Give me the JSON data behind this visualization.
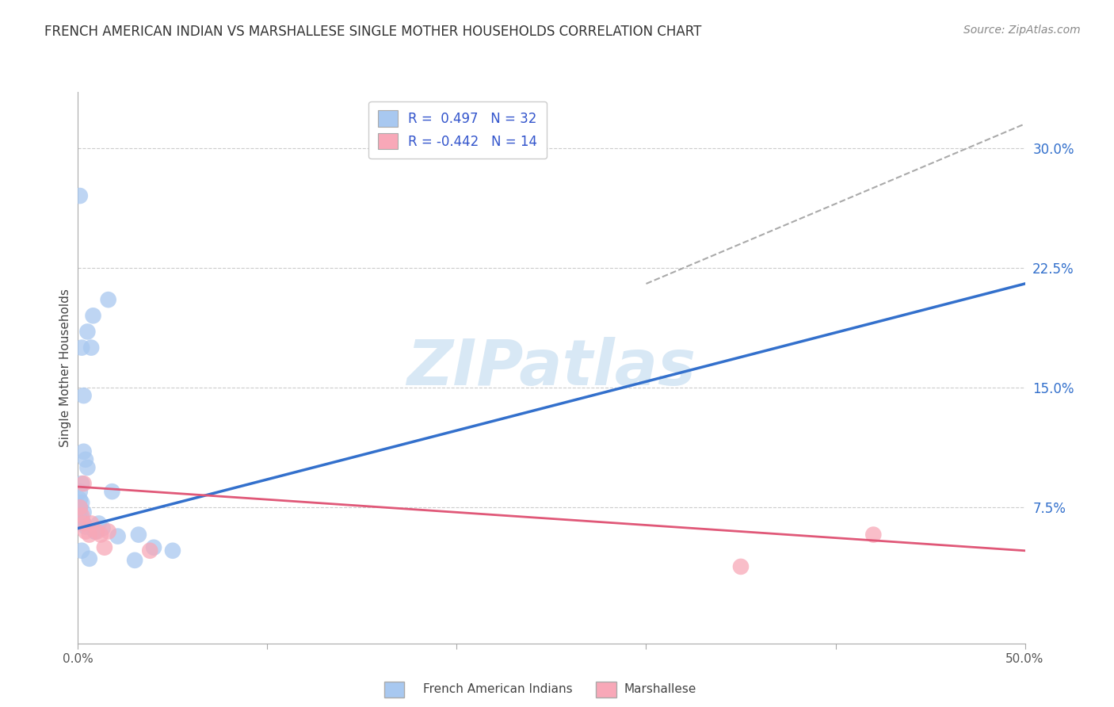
{
  "title": "FRENCH AMERICAN INDIAN VS MARSHALLESE SINGLE MOTHER HOUSEHOLDS CORRELATION CHART",
  "source": "Source: ZipAtlas.com",
  "ylabel": "Single Mother Households",
  "right_yticks": [
    "30.0%",
    "22.5%",
    "15.0%",
    "7.5%"
  ],
  "right_ytick_vals": [
    0.3,
    0.225,
    0.15,
    0.075
  ],
  "watermark": "ZIPatlas",
  "legend_blue_r": "R =  0.497",
  "legend_blue_n": "N = 32",
  "legend_pink_r": "R = -0.442",
  "legend_pink_n": "N = 14",
  "blue_scatter_x": [
    0.001,
    0.008,
    0.005,
    0.007,
    0.002,
    0.003,
    0.003,
    0.004,
    0.005,
    0.002,
    0.001,
    0.001,
    0.002,
    0.001,
    0.001,
    0.003,
    0.002,
    0.003,
    0.004,
    0.009,
    0.009,
    0.011,
    0.013,
    0.016,
    0.018,
    0.021,
    0.03,
    0.032,
    0.04,
    0.05,
    0.002,
    0.006
  ],
  "blue_scatter_y": [
    0.27,
    0.195,
    0.185,
    0.175,
    0.175,
    0.145,
    0.11,
    0.105,
    0.1,
    0.09,
    0.085,
    0.08,
    0.078,
    0.075,
    0.073,
    0.072,
    0.068,
    0.065,
    0.063,
    0.06,
    0.06,
    0.065,
    0.062,
    0.205,
    0.085,
    0.057,
    0.042,
    0.058,
    0.05,
    0.048,
    0.048,
    0.043
  ],
  "pink_scatter_x": [
    0.001,
    0.002,
    0.003,
    0.003,
    0.004,
    0.006,
    0.007,
    0.01,
    0.012,
    0.014,
    0.016,
    0.038,
    0.35,
    0.42
  ],
  "pink_scatter_y": [
    0.075,
    0.07,
    0.09,
    0.065,
    0.06,
    0.058,
    0.065,
    0.06,
    0.058,
    0.05,
    0.06,
    0.048,
    0.038,
    0.058
  ],
  "blue_line_x": [
    0.0,
    0.5
  ],
  "blue_line_y": [
    0.062,
    0.215
  ],
  "pink_line_x": [
    0.0,
    0.5
  ],
  "pink_line_y": [
    0.088,
    0.048
  ],
  "dashed_line_x": [
    0.3,
    0.5
  ],
  "dashed_line_y": [
    0.215,
    0.315
  ],
  "xlim": [
    0.0,
    0.5
  ],
  "ylim": [
    -0.01,
    0.335
  ],
  "blue_color": "#A8C8F0",
  "pink_color": "#F8A8B8",
  "blue_line_color": "#3370CC",
  "pink_line_color": "#E05878",
  "dashed_color": "#AAAAAA",
  "legend_text_color": "#3355CC",
  "grid_color": "#CCCCCC",
  "background_color": "#FFFFFF",
  "watermark_color": "#D8E8F5",
  "title_fontsize": 12,
  "source_fontsize": 10,
  "legend_fontsize": 12,
  "ylabel_fontsize": 11
}
